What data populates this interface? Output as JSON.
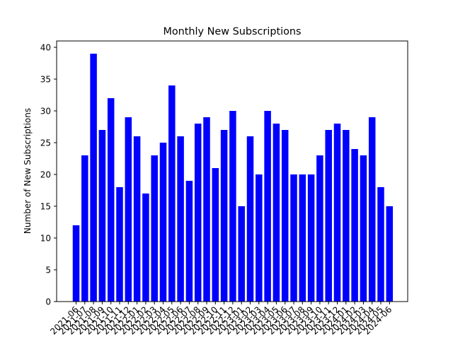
{
  "chart_data": {
    "type": "bar",
    "title": "Monthly New Subscriptions",
    "xlabel": "",
    "ylabel": "Number of New Subscriptions",
    "ylim": [
      0,
      41
    ],
    "yticks": [
      0,
      5,
      10,
      15,
      20,
      25,
      30,
      35,
      40
    ],
    "grid": false,
    "bar_color": "#0000ff",
    "categories": [
      "2021-06",
      "2021-07",
      "2021-08",
      "2021-09",
      "2021-10",
      "2021-11",
      "2021-12",
      "2022-01",
      "2022-02",
      "2022-03",
      "2022-04",
      "2022-05",
      "2022-06",
      "2022-07",
      "2022-08",
      "2022-09",
      "2022-10",
      "2022-11",
      "2022-12",
      "2023-01",
      "2023-02",
      "2023-03",
      "2023-04",
      "2023-05",
      "2023-06",
      "2023-07",
      "2023-08",
      "2023-09",
      "2023-10",
      "2023-11",
      "2023-12",
      "2024-01",
      "2024-02",
      "2024-03",
      "2024-04",
      "2024-05",
      "2024-06"
    ],
    "values": [
      12,
      23,
      39,
      27,
      32,
      18,
      29,
      26,
      17,
      23,
      25,
      34,
      26,
      19,
      28,
      29,
      21,
      27,
      30,
      15,
      26,
      20,
      30,
      28,
      27,
      20,
      20,
      20,
      23,
      27,
      28,
      27,
      24,
      23,
      29,
      18,
      15
    ]
  }
}
